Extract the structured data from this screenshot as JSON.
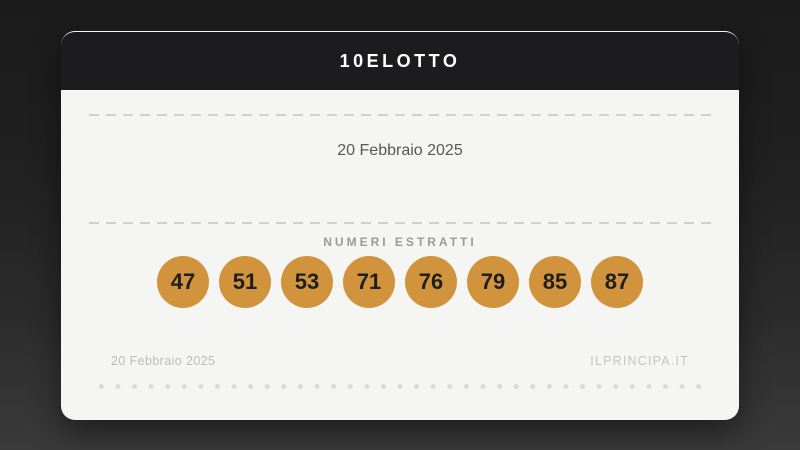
{
  "card": {
    "title": "10ELOTTO",
    "draw_date": "20 Febbraio 2025",
    "numbers_label": "NUMERI ESTRATTI",
    "numbers": [
      "47",
      "51",
      "53",
      "71",
      "76",
      "79",
      "85",
      "87"
    ],
    "footer": {
      "date": "20 Febbraio 2025",
      "site": "ILPRINCIPA.IT"
    },
    "colors": {
      "header_bg": "#1c1c1e",
      "card_bg": "#f5f5f4",
      "ball_bg": "#d1943c",
      "ball_text": "#1e1e1e",
      "dash": "#d0d0d0"
    }
  }
}
